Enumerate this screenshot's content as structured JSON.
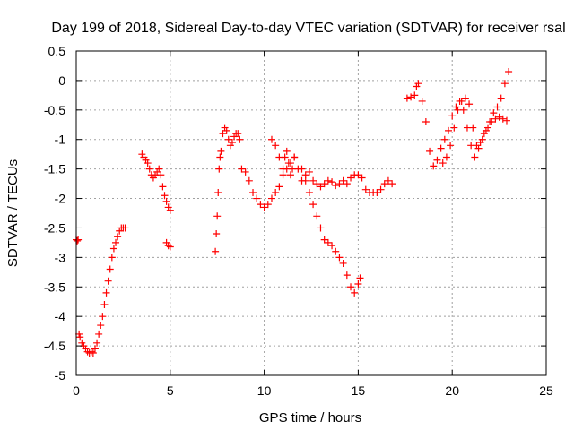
{
  "chart_data": {
    "type": "scatter",
    "title": "Day 199 of 2018, Sidereal Day-to-day VTEC variation (SDTVAR) for receiver rsal",
    "xlabel": "GPS time / hours",
    "ylabel": "SDTVAR / TECUs",
    "xlim": [
      0,
      25
    ],
    "ylim": [
      -5,
      0.5
    ],
    "xticks": [
      0,
      5,
      10,
      15,
      20,
      25
    ],
    "xtick_labels": [
      "0",
      "5",
      "10",
      "15",
      "20",
      "25"
    ],
    "yticks": [
      0.5,
      0,
      -0.5,
      -1,
      -1.5,
      -2,
      -2.5,
      -3,
      -3.5,
      -4,
      -4.5,
      -5
    ],
    "ytick_labels": [
      "0.5",
      "0",
      "-0.5",
      "-1",
      "-1.5",
      "-2",
      "-2.5",
      "-3",
      "-3.5",
      "-4",
      "-4.5",
      "-5"
    ],
    "grid": true,
    "marker": "+",
    "color": "#ff0000",
    "series": [
      {
        "name": "SDTVAR",
        "x": [
          0.0,
          0.05,
          0.1,
          0.15,
          0.2,
          0.3,
          0.4,
          0.5,
          0.6,
          0.7,
          0.8,
          0.9,
          1.0,
          1.1,
          1.2,
          1.3,
          1.4,
          1.5,
          1.6,
          1.7,
          1.8,
          1.9,
          2.0,
          2.1,
          2.2,
          2.3,
          2.4,
          2.5,
          2.6,
          3.5,
          3.6,
          3.7,
          3.8,
          3.9,
          4.0,
          4.1,
          4.2,
          4.3,
          4.4,
          4.5,
          4.6,
          4.7,
          4.8,
          4.9,
          5.0,
          4.8,
          4.9,
          5.0,
          7.4,
          7.45,
          7.5,
          7.55,
          7.6,
          7.65,
          7.7,
          7.8,
          7.9,
          8.0,
          8.1,
          8.2,
          8.3,
          8.4,
          8.5,
          8.6,
          8.7,
          8.8,
          9.0,
          9.2,
          9.4,
          9.6,
          9.8,
          10.0,
          10.2,
          10.4,
          10.6,
          10.8,
          11.0,
          11.1,
          11.2,
          11.3,
          11.4,
          11.5,
          11.6,
          11.8,
          12.0,
          12.2,
          12.4,
          12.6,
          12.8,
          13.0,
          13.2,
          13.4,
          13.6,
          13.8,
          14.0,
          14.2,
          14.4,
          14.6,
          14.8,
          15.0,
          15.2,
          15.4,
          15.6,
          15.8,
          16.0,
          16.2,
          16.4,
          16.6,
          16.8,
          12.0,
          12.2,
          12.4,
          12.6,
          12.8,
          13.0,
          13.2,
          13.4,
          13.6,
          13.8,
          14.0,
          14.2,
          14.4,
          14.6,
          14.8,
          15.0,
          15.1,
          10.4,
          10.6,
          10.8,
          11.0,
          11.2,
          11.4,
          11.6,
          17.6,
          17.8,
          18.0,
          18.1,
          18.2,
          18.4,
          18.6,
          18.8,
          19.0,
          19.2,
          19.4,
          19.6,
          19.8,
          20.0,
          20.2,
          20.4,
          20.6,
          20.8,
          21.0,
          21.2,
          21.4,
          21.6,
          21.8,
          22.0,
          22.2,
          22.4,
          22.6,
          22.8,
          23.0,
          19.5,
          19.7,
          19.9,
          20.1,
          20.3,
          20.5,
          20.7,
          20.9,
          21.1,
          21.3,
          21.5,
          21.7,
          21.9,
          22.1,
          22.3,
          22.5,
          22.7,
          22.9
        ],
        "y": [
          -2.7,
          -2.72,
          -2.7,
          -4.3,
          -4.35,
          -4.45,
          -4.5,
          -4.55,
          -4.6,
          -4.62,
          -4.6,
          -4.62,
          -4.55,
          -4.45,
          -4.3,
          -4.15,
          -4.0,
          -3.8,
          -3.6,
          -3.4,
          -3.2,
          -3.0,
          -2.85,
          -2.75,
          -2.65,
          -2.55,
          -2.5,
          -2.5,
          -2.5,
          -1.25,
          -1.3,
          -1.35,
          -1.4,
          -1.5,
          -1.6,
          -1.65,
          -1.6,
          -1.55,
          -1.5,
          -1.6,
          -1.8,
          -1.95,
          -2.05,
          -2.15,
          -2.2,
          -2.75,
          -2.8,
          -2.82,
          -2.9,
          -2.6,
          -2.3,
          -1.9,
          -1.5,
          -1.3,
          -1.2,
          -0.9,
          -0.8,
          -0.85,
          -1.0,
          -1.1,
          -1.05,
          -0.95,
          -0.9,
          -0.9,
          -1.0,
          -1.5,
          -1.55,
          -1.7,
          -1.9,
          -2.0,
          -2.1,
          -2.15,
          -2.1,
          -2.0,
          -1.9,
          -1.8,
          -1.5,
          -1.3,
          -1.2,
          -1.4,
          -1.6,
          -1.5,
          -1.3,
          -1.5,
          -1.7,
          -1.6,
          -1.55,
          -1.7,
          -1.75,
          -1.8,
          -1.75,
          -1.7,
          -1.72,
          -1.78,
          -1.75,
          -1.7,
          -1.75,
          -1.65,
          -1.6,
          -1.6,
          -1.65,
          -1.85,
          -1.9,
          -1.9,
          -1.9,
          -1.85,
          -1.75,
          -1.7,
          -1.75,
          -1.5,
          -1.7,
          -1.9,
          -2.1,
          -2.3,
          -2.5,
          -2.7,
          -2.75,
          -2.8,
          -2.9,
          -3.0,
          -3.1,
          -3.3,
          -3.5,
          -3.6,
          -3.45,
          -3.35,
          -1.0,
          -1.1,
          -1.3,
          -1.6,
          -1.5,
          -1.4,
          -1.3,
          -0.3,
          -0.28,
          -0.25,
          -0.1,
          -0.05,
          -0.35,
          -0.7,
          -1.2,
          -1.45,
          -1.35,
          -1.15,
          -1.0,
          -0.85,
          -0.6,
          -0.45,
          -0.35,
          -0.5,
          -0.8,
          -1.1,
          -1.3,
          -1.15,
          -1.0,
          -0.85,
          -0.7,
          -0.55,
          -0.45,
          -0.3,
          -0.05,
          0.15,
          -1.4,
          -1.3,
          -1.1,
          -0.8,
          -0.5,
          -0.35,
          -0.3,
          -0.4,
          -0.8,
          -1.1,
          -1.05,
          -0.9,
          -0.8,
          -0.7,
          -0.65,
          -0.62,
          -0.65,
          -0.68
        ]
      }
    ]
  }
}
